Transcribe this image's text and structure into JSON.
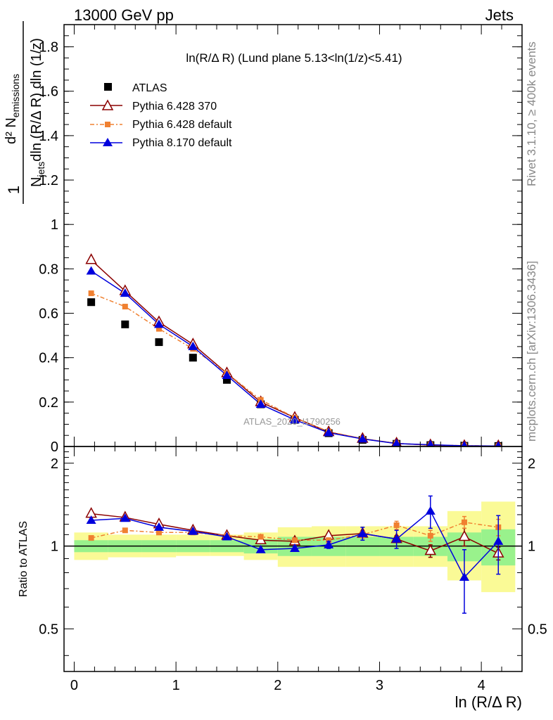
{
  "header": {
    "left": "13000 GeV pp",
    "right": "Jets"
  },
  "side_text": {
    "rivet": "Rivet 3.1.10, ≥ 400k events",
    "mcplots": "mcplots.cern.ch [arXiv:1306.3436]"
  },
  "plot_title": "ln(R/Δ R) (Lund plane 5.13<ln(1/z)<5.41)",
  "watermark": "ATLAS_2020_I1790256",
  "colors": {
    "atlas": "#000000",
    "py6_370": "#8b0000",
    "py6_default": "#f08030",
    "py8_default": "#0000dd",
    "band_inner": "#99f28c",
    "band_outer": "#fafa96"
  },
  "chart_data": [
    {
      "type": "scatter",
      "ylabel": "1/N_jets d²N_emissions / dln(R/Δ R) dln(1/z)",
      "xlim": [
        -0.1,
        4.4
      ],
      "ylim": [
        0,
        1.9
      ],
      "y_ticks": [
        "0",
        "0.2",
        "0.4",
        "0.6",
        "0.8",
        "1",
        "1.2",
        "1.4",
        "1.6",
        "1.8"
      ],
      "legend_position": "top-left",
      "x": [
        0.167,
        0.5,
        0.833,
        1.167,
        1.5,
        1.833,
        2.167,
        2.5,
        2.833,
        3.167,
        3.5,
        3.833,
        4.167
      ],
      "series": [
        {
          "name": "ATLAS",
          "values": [
            0.65,
            0.55,
            0.47,
            0.4,
            0.3,
            0.19,
            0.12,
            0.06,
            0.03,
            0.012,
            0.006,
            0.003,
            0.002
          ]
        },
        {
          "name": "Pythia 6.428 370",
          "values": [
            0.84,
            0.7,
            0.56,
            0.46,
            0.33,
            0.2,
            0.13,
            0.065,
            0.035,
            0.014,
            0.006,
            0.003,
            0.002
          ]
        },
        {
          "name": "Pythia 6.428 default",
          "values": [
            0.69,
            0.63,
            0.53,
            0.44,
            0.33,
            0.21,
            0.13,
            0.067,
            0.035,
            0.014,
            0.007,
            0.004,
            0.002
          ]
        },
        {
          "name": "Pythia 8.170 default",
          "values": [
            0.79,
            0.69,
            0.55,
            0.45,
            0.32,
            0.19,
            0.12,
            0.062,
            0.034,
            0.013,
            0.008,
            0.003,
            0.002
          ]
        }
      ]
    },
    {
      "type": "scatter",
      "xlabel": "ln (R/Δ R)",
      "ylabel": "Ratio to ATLAS",
      "xlim": [
        -0.1,
        4.4
      ],
      "ylim": [
        0.35,
        2.3
      ],
      "y_ticks": [
        "0.5",
        "1",
        "2"
      ],
      "x_ticks": [
        "0",
        "1",
        "2",
        "3",
        "4"
      ],
      "x_edges": [
        0,
        0.333,
        0.667,
        1.0,
        1.333,
        1.667,
        2.0,
        2.333,
        2.667,
        3.0,
        3.333,
        3.667,
        4.0,
        4.333
      ],
      "band_inner": {
        "lo": [
          0.95,
          0.95,
          0.95,
          0.95,
          0.95,
          0.94,
          0.92,
          0.92,
          0.92,
          0.92,
          0.92,
          0.88,
          0.85
        ],
        "hi": [
          1.05,
          1.05,
          1.05,
          1.05,
          1.05,
          1.06,
          1.08,
          1.08,
          1.08,
          1.08,
          1.08,
          1.12,
          1.15
        ]
      },
      "band_outer": {
        "lo": [
          0.89,
          0.91,
          0.91,
          0.92,
          0.92,
          0.89,
          0.84,
          0.84,
          0.84,
          0.84,
          0.84,
          0.75,
          0.68
        ],
        "hi": [
          1.12,
          1.1,
          1.1,
          1.1,
          1.1,
          1.12,
          1.17,
          1.18,
          1.18,
          1.18,
          1.18,
          1.34,
          1.45
        ]
      },
      "series": [
        {
          "name": "Pythia 6.428 370",
          "values": [
            1.31,
            1.27,
            1.2,
            1.14,
            1.09,
            1.05,
            1.04,
            1.09,
            1.11,
            1.06,
            0.96,
            1.08,
            0.94
          ],
          "err": [
            0,
            0,
            0,
            0,
            0,
            0,
            0,
            0,
            0.02,
            0.03,
            0.05,
            0.08,
            0.05
          ]
        },
        {
          "name": "Pythia 6.428 default",
          "values": [
            1.07,
            1.14,
            1.12,
            1.12,
            1.09,
            1.08,
            1.05,
            1.05,
            1.1,
            1.19,
            1.09,
            1.22,
            1.17
          ],
          "err": [
            0,
            0,
            0,
            0,
            0,
            0,
            0,
            0.02,
            0.03,
            0.04,
            0.05,
            0.06,
            0.08
          ]
        },
        {
          "name": "Pythia 8.170 default",
          "values": [
            1.24,
            1.26,
            1.17,
            1.13,
            1.08,
            0.97,
            0.98,
            1.01,
            1.11,
            1.06,
            1.34,
            0.77,
            1.04
          ],
          "err": [
            0,
            0,
            0,
            0,
            0,
            0.01,
            0.02,
            0.03,
            0.06,
            0.08,
            0.18,
            0.2,
            0.25
          ]
        }
      ]
    }
  ],
  "legend": [
    {
      "label": "ATLAS"
    },
    {
      "label": "Pythia 6.428 370"
    },
    {
      "label": "Pythia 6.428 default"
    },
    {
      "label": "Pythia 8.170 default"
    }
  ]
}
